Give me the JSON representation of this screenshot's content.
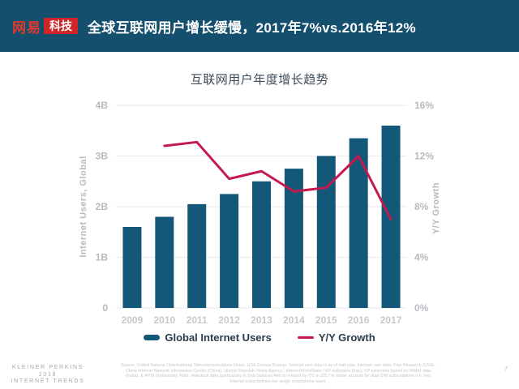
{
  "header": {
    "logo_netease": "网易",
    "logo_tech": "科技",
    "title": "全球互联网用户增长缓慢，2017年7%vs.2016年12%"
  },
  "chart_data": {
    "type": "bar",
    "title": "互联网用户年度增长趋势",
    "categories": [
      "2009",
      "2010",
      "2011",
      "2012",
      "2013",
      "2014",
      "2015",
      "2016",
      "2017"
    ],
    "series": [
      {
        "name": "Global Internet Users",
        "type": "bar",
        "axis": "left",
        "unit": "B",
        "color": "#135779",
        "values": [
          1.6,
          1.8,
          2.05,
          2.25,
          2.5,
          2.75,
          3.0,
          3.35,
          3.6
        ]
      },
      {
        "name": "Y/Y Growth",
        "type": "line",
        "axis": "right",
        "unit": "%",
        "color": "#c51a50",
        "values": [
          null,
          12.8,
          13.1,
          10.2,
          10.8,
          9.2,
          9.5,
          12,
          7
        ]
      }
    ],
    "left_axis": {
      "label": "Internet Users, Global",
      "min": 0,
      "max": 4,
      "ticks": [
        "4B",
        "3B",
        "2B",
        "1B",
        "0"
      ]
    },
    "right_axis": {
      "label": "Y/Y Growth",
      "min": 0,
      "max": 16,
      "ticks": [
        "16%",
        "12%",
        "8%",
        "4%",
        "0%"
      ]
    },
    "grid": true,
    "legend_position": "bottom"
  },
  "footer": {
    "brand_line1": "KLEINER PERKINS",
    "brand_line2": "2018",
    "brand_line3": "INTERNET TRENDS",
    "source": "Source: United Nations / International Telecommunications Union, USA Census Bureau. Internet user data is as of mid-year. Internet user data: Pew Research (USA), China Internet Network Information Center (China), Islamic Republic News Agency / InternetWorldStats / KP estimates (Iran). KP estimates based on IAMAI data (India), & APJII (Indonesia). Note: Historical data (particularly in Sub-Saharan Africa) revised by ITU in 2017 to better account for dual-SIM subscriptions (i.e. two Internet subscriptions per single smartphone user).",
    "page_number": "7"
  },
  "colors": {
    "header_bg": "#14506e",
    "logo_red": "#cf2428",
    "bar": "#135779",
    "line": "#c51a50",
    "axis_text": "#b7bbbf",
    "category_text": "#c6c9cd",
    "legend_text": "#2c3c4b",
    "gridline": "#e8eaec"
  }
}
